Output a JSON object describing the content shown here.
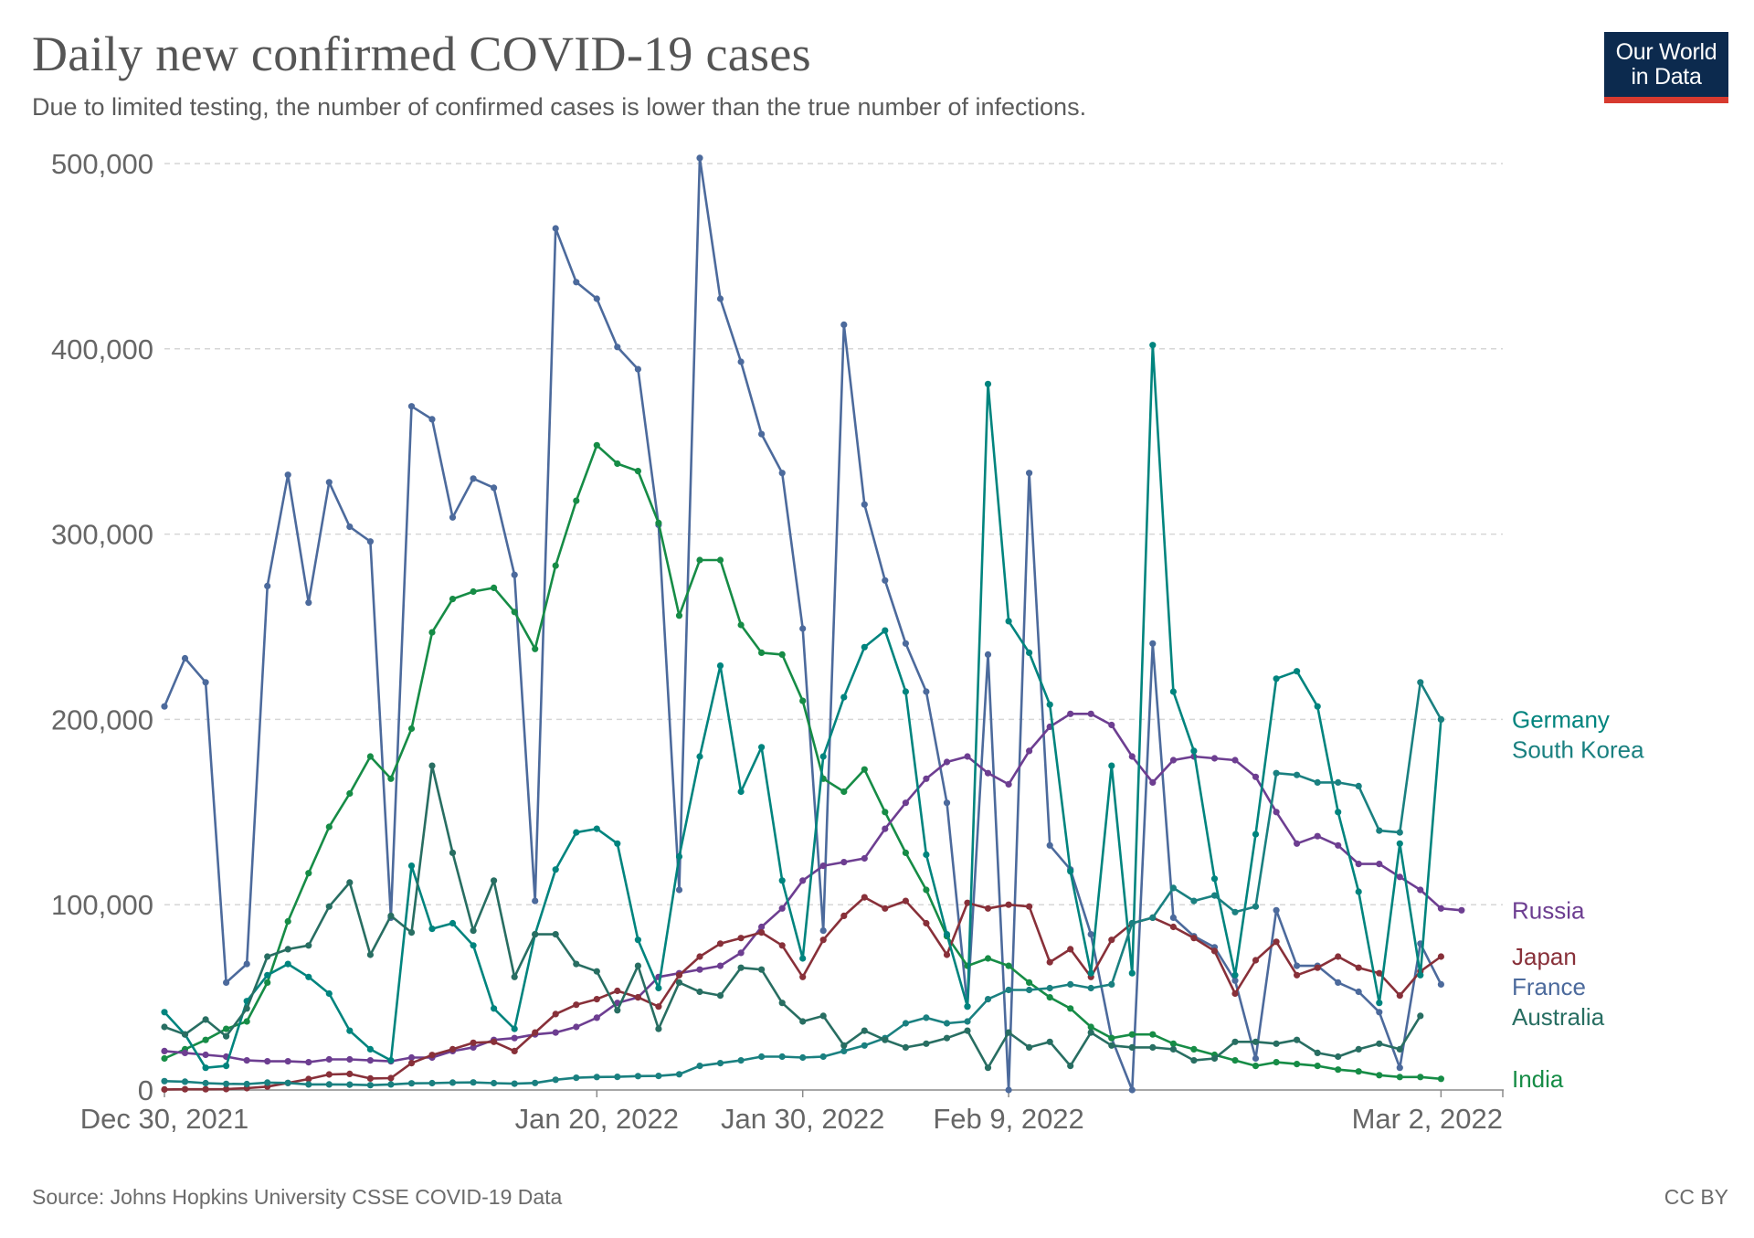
{
  "header": {
    "title": "Daily new confirmed COVID-19 cases",
    "subtitle": "Due to limited testing, the number of confirmed cases is lower than the true number of infections."
  },
  "logo": {
    "line1": "Our World",
    "line2": "in Data",
    "background": "#0c2a4e",
    "accent": "#d73a2f"
  },
  "footer": {
    "source": "Source: Johns Hopkins University CSSE COVID-19 Data",
    "license": "CC BY"
  },
  "chart_data": {
    "type": "line",
    "title": "Daily new confirmed COVID-19 cases",
    "xlabel": "",
    "ylabel": "",
    "x_start": "2021-12-30",
    "x_end": "2022-03-05",
    "x_ticks": [
      {
        "date": "2021-12-30",
        "label": "Dec 30, 2021"
      },
      {
        "date": "2022-01-20",
        "label": "Jan 20, 2022"
      },
      {
        "date": "2022-01-30",
        "label": "Jan 30, 2022"
      },
      {
        "date": "2022-02-09",
        "label": "Feb 9, 2022"
      },
      {
        "date": "2022-03-02",
        "label": "Mar 2, 2022"
      }
    ],
    "ylim": [
      0,
      500000
    ],
    "y_ticks": [
      {
        "value": 0,
        "label": "0"
      },
      {
        "value": 100000,
        "label": "100,000"
      },
      {
        "value": 200000,
        "label": "200,000"
      },
      {
        "value": 300000,
        "label": "300,000"
      },
      {
        "value": 400000,
        "label": "400,000"
      },
      {
        "value": 500000,
        "label": "500,000"
      }
    ],
    "grid": "horizontal dashed",
    "legend": "end-of-line labels on the right",
    "series": [
      {
        "name": "France",
        "color": "#4c6a9c",
        "values": [
          207000,
          233000,
          220000,
          58000,
          68000,
          272000,
          332000,
          263000,
          328000,
          304000,
          296000,
          93000,
          369000,
          362000,
          309000,
          330000,
          325000,
          278000,
          102000,
          465000,
          436000,
          427000,
          401000,
          389000,
          305000,
          108000,
          503000,
          427000,
          393000,
          354000,
          333000,
          249000,
          86000,
          413000,
          316000,
          275000,
          241000,
          215000,
          155000,
          45000,
          235000,
          0,
          333000,
          132000,
          119000,
          84000,
          28000,
          0,
          241000,
          93000,
          83000,
          77000,
          59000,
          17000,
          97000,
          67000,
          67000,
          58000,
          53000,
          42000,
          12000,
          79000,
          57000
        ]
      },
      {
        "name": "India",
        "color": "#168c46",
        "values": [
          17000,
          22000,
          27000,
          33000,
          37000,
          58000,
          91000,
          117000,
          142000,
          160000,
          180000,
          168000,
          195000,
          247000,
          265000,
          269000,
          271000,
          258000,
          238000,
          283000,
          318000,
          348000,
          338000,
          334000,
          306000,
          256000,
          286000,
          286000,
          251000,
          236000,
          235000,
          210000,
          168000,
          161000,
          173000,
          150000,
          128000,
          108000,
          83000,
          67000,
          71000,
          67000,
          58000,
          50000,
          44000,
          34000,
          28000,
          30000,
          30000,
          25000,
          22000,
          19000,
          16000,
          13000,
          15000,
          14000,
          13000,
          11000,
          10000,
          8000,
          7000,
          7000,
          6000
        ]
      },
      {
        "name": "Russia",
        "color": "#6d3e91",
        "values": [
          21000,
          20000,
          19000,
          18000,
          16000,
          15500,
          15500,
          15000,
          16500,
          16500,
          16000,
          15500,
          17500,
          17500,
          21000,
          23000,
          27000,
          28000,
          30000,
          31000,
          34000,
          39000,
          47000,
          50000,
          61000,
          63000,
          65000,
          67000,
          74000,
          88000,
          98000,
          113000,
          121000,
          123000,
          125000,
          141000,
          155000,
          168000,
          177000,
          180000,
          171000,
          165000,
          183000,
          196000,
          203000,
          203000,
          197000,
          180000,
          166000,
          178000,
          180000,
          179000,
          178000,
          169000,
          150000,
          133000,
          137000,
          132000,
          122000,
          122000,
          115000,
          108000,
          98000,
          97000
        ]
      },
      {
        "name": "Japan",
        "color": "#883039",
        "values": [
          300,
          400,
          400,
          500,
          1000,
          1800,
          3800,
          5900,
          8400,
          8700,
          6200,
          6400,
          14500,
          18900,
          22000,
          25500,
          26000,
          21000,
          31000,
          41000,
          46000,
          49000,
          53500,
          50000,
          45000,
          62000,
          72000,
          79000,
          82000,
          85000,
          78000,
          61000,
          81000,
          94000,
          104000,
          98000,
          102000,
          90000,
          73000,
          101000,
          98000,
          100000,
          99000,
          69000,
          76000,
          61000,
          81000,
          90000,
          93000,
          88000,
          82000,
          75000,
          52000,
          70000,
          80000,
          62000,
          66000,
          72000,
          66000,
          63000,
          51000,
          64000,
          72000
        ]
      },
      {
        "name": "Germany",
        "color": "#00847e",
        "values": [
          42000,
          30000,
          12000,
          13000,
          48000,
          62000,
          68000,
          61000,
          52000,
          32000,
          22000,
          16000,
          121000,
          87000,
          90000,
          78000,
          44000,
          33000,
          84000,
          119000,
          139000,
          141000,
          133000,
          81000,
          55000,
          126000,
          180000,
          229000,
          161000,
          185000,
          113000,
          71000,
          180000,
          212000,
          239000,
          248000,
          215000,
          127000,
          84000,
          45000,
          381000,
          253000,
          236000,
          208000,
          118000,
          63000,
          175000,
          63000,
          402000,
          215000,
          183000,
          114000,
          62000,
          138000,
          222000,
          226000,
          207000,
          150000,
          107000,
          47000,
          133000,
          62000,
          200000
        ]
      },
      {
        "name": "South Korea",
        "color": "#1a8080",
        "values": [
          4800,
          4500,
          3700,
          3300,
          3200,
          4000,
          3800,
          3000,
          3000,
          2900,
          2600,
          3000,
          3600,
          3700,
          4000,
          4100,
          3700,
          3400,
          3800,
          5500,
          6600,
          7000,
          7100,
          7500,
          7600,
          8500,
          13000,
          14500,
          16000,
          18000,
          18000,
          17500,
          18000,
          21000,
          24000,
          28000,
          36000,
          39000,
          36000,
          37000,
          49000,
          54000,
          54000,
          55000,
          57000,
          55000,
          57000,
          90000,
          93000,
          109000,
          102000,
          105000,
          96000,
          99000,
          171000,
          170000,
          166000,
          166000,
          164000,
          140000,
          139000,
          220000,
          200000
        ]
      },
      {
        "name": "Australia",
        "color": "#286e62",
        "values": [
          34000,
          30000,
          38000,
          29000,
          44000,
          72000,
          76000,
          78000,
          99000,
          112000,
          73000,
          94000,
          85000,
          175000,
          128000,
          86000,
          113000,
          61000,
          84000,
          84000,
          68000,
          64000,
          43000,
          67000,
          33000,
          58000,
          53000,
          51000,
          66000,
          65000,
          47000,
          37000,
          40000,
          24000,
          32000,
          27000,
          23000,
          25000,
          28000,
          32000,
          12000,
          31000,
          23000,
          26000,
          13000,
          31000,
          24000,
          23000,
          23000,
          22000,
          16000,
          17000,
          26000,
          26000,
          25000,
          27000,
          20000,
          18000,
          22000,
          25000,
          22000,
          40000
        ]
      }
    ],
    "label_order": [
      "Germany",
      "South Korea",
      "Russia",
      "Japan",
      "France",
      "Australia",
      "India"
    ]
  }
}
